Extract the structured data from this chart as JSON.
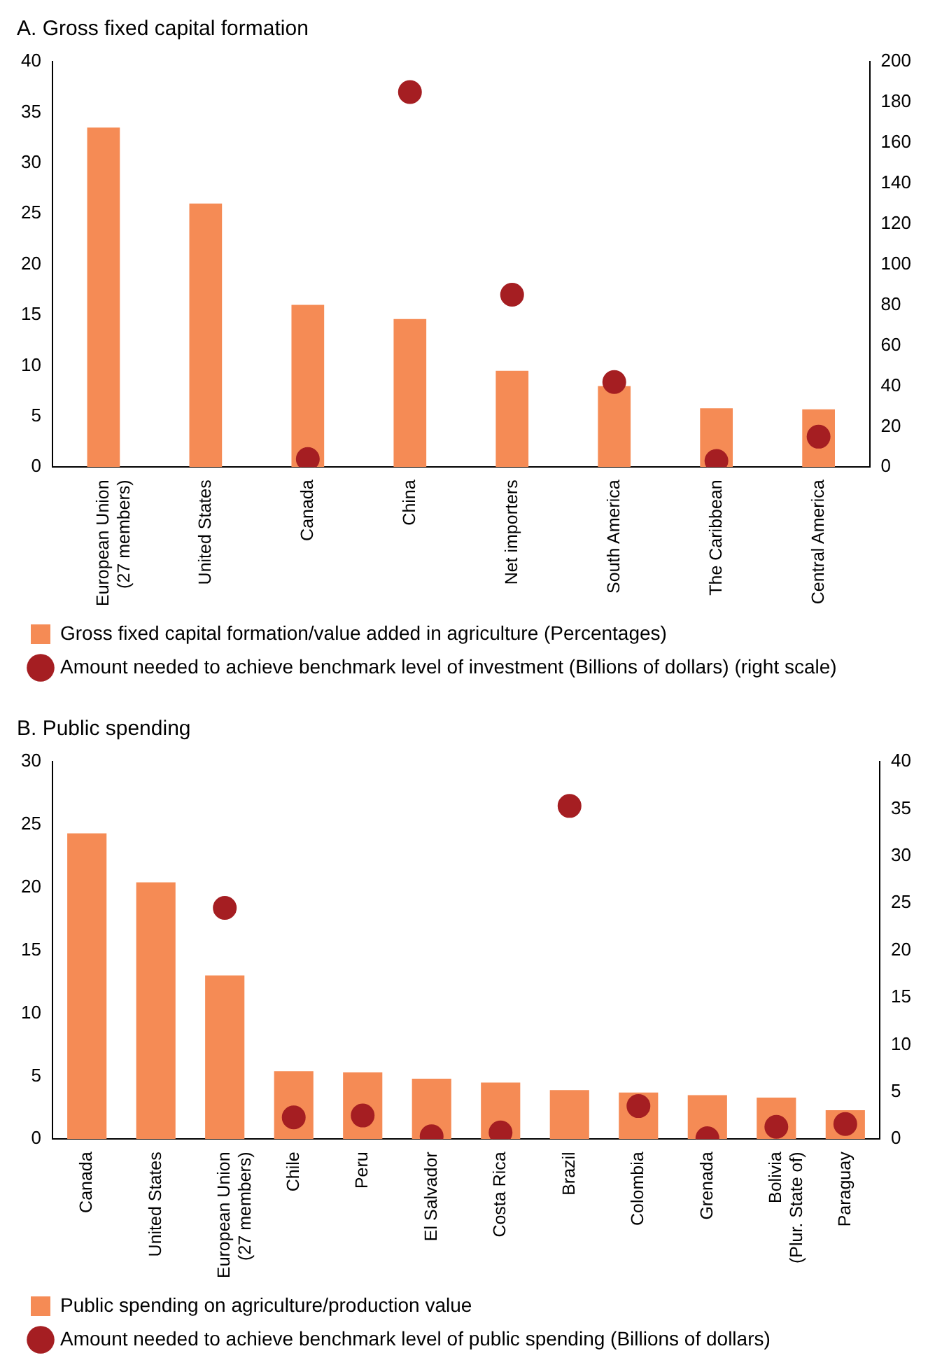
{
  "chart_data": [
    {
      "type": "bar",
      "title": "A. Gross fixed capital formation",
      "categories": [
        "European Union (27 members)",
        "United States",
        "Canada",
        "China",
        "Net importers",
        "South America",
        "The Caribbean",
        "Central America"
      ],
      "series": [
        {
          "name": "Gross fixed capital formation/value added in agriculture (Percentages)",
          "color": "#f58b55",
          "values": [
            33.5,
            26,
            16,
            14.6,
            9.5,
            8,
            5.8,
            5.7
          ]
        },
        {
          "type": "scatter",
          "axis": "y2",
          "name": "Amount needed to achieve benchmark level of investment (Billions of dollars) (right scale)",
          "color": "#a51e22",
          "x": [
            "European Union (27 members)",
            "United States",
            "Canada",
            "China",
            "Net importers",
            "South America",
            "The Caribbean",
            "Central America"
          ],
          "values": [
            null,
            null,
            4,
            185,
            85,
            42,
            3,
            15
          ]
        }
      ],
      "ylim": [
        0,
        40
      ],
      "yticks": [
        0,
        5,
        10,
        15,
        20,
        25,
        30,
        35,
        40
      ],
      "y2lim": [
        0,
        200
      ],
      "y2ticks": [
        0,
        20,
        40,
        60,
        80,
        100,
        120,
        140,
        160,
        180,
        200
      ],
      "grid": false,
      "legend": "bottom",
      "marker": "circle"
    },
    {
      "type": "bar",
      "title": "B. Public spending",
      "categories": [
        "Canada",
        "United States",
        "European Union (27 members)",
        "Chile",
        "Peru",
        "El Salvador",
        "Costa Rica",
        "Brazil",
        "Colombia",
        "Grenada",
        "Bolivia (Plur. State of)",
        "Paraguay"
      ],
      "series": [
        {
          "name": "Public spending on agriculture/production value",
          "color": "#f58b55",
          "values": [
            24.3,
            20.4,
            13,
            5.4,
            5.3,
            4.8,
            4.5,
            3.9,
            3.7,
            3.5,
            3.3,
            2.3
          ]
        },
        {
          "type": "scatter",
          "axis": "y2",
          "name": "Amount needed to achieve benchmark level of public spending (Billions of dollars)",
          "color": "#a51e22",
          "x": [
            "Canada",
            "United States",
            "European Union (27 members)",
            "Chile",
            "Peru",
            "El Salvador",
            "Costa Rica",
            "Brazil",
            "Colombia",
            "Grenada",
            "Bolivia (Plur. State of)",
            "Paraguay"
          ],
          "values": [
            null,
            null,
            24.5,
            2.3,
            2.5,
            0.3,
            0.7,
            35.3,
            3.5,
            0.1,
            1.3,
            1.6
          ]
        }
      ],
      "ylim": [
        0,
        30
      ],
      "yticks": [
        0,
        5,
        10,
        15,
        20,
        25,
        30
      ],
      "y2lim": [
        0,
        40
      ],
      "y2ticks": [
        0,
        5,
        10,
        15,
        20,
        25,
        30,
        35,
        40
      ],
      "grid": false,
      "legend": "bottom",
      "marker": "circle"
    }
  ]
}
